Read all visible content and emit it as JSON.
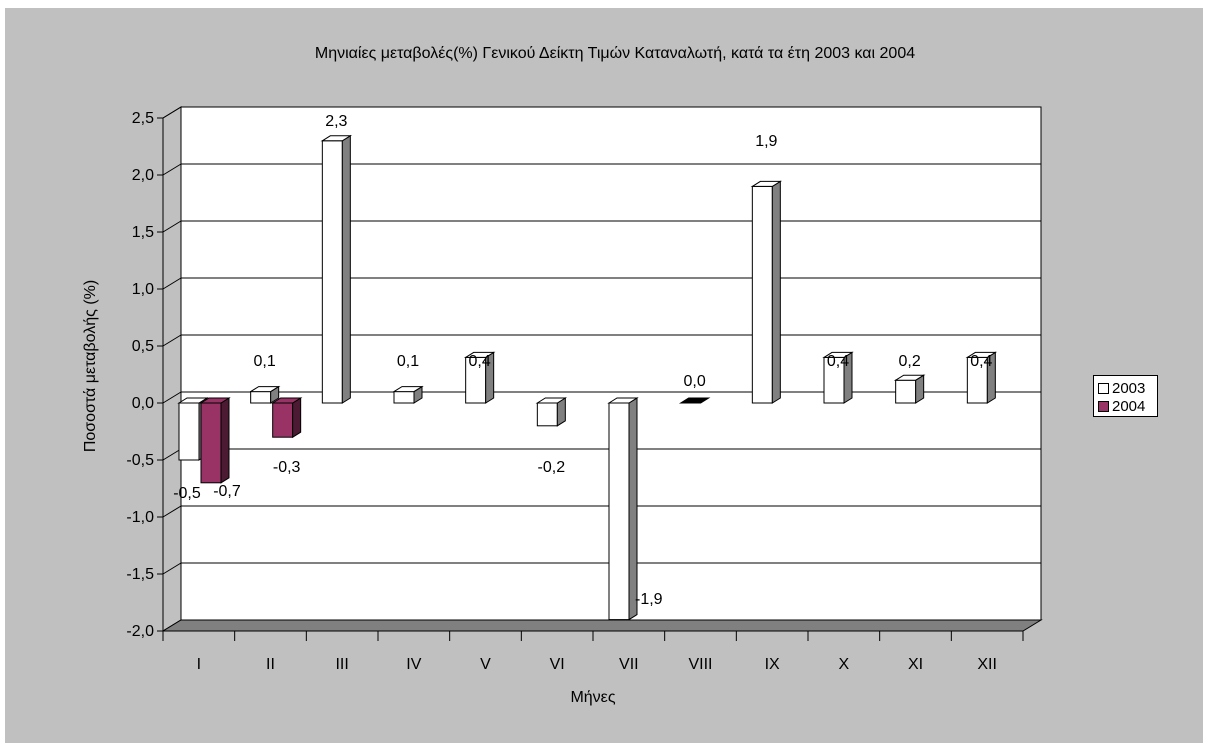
{
  "colors": {
    "background": "#c0c0c0",
    "plot_back": "#ffffff",
    "gridline": "#000000",
    "floor": "#808080",
    "series_2003_face": "#ffffff",
    "series_2003_side": "#808080",
    "series_2004_face": "#993366",
    "series_2004_side": "#4d1a33"
  },
  "chart_data": {
    "type": "bar",
    "title": "Μηνιαίες μεταβολές(%) Γενικού Δείκτη Τιμών Καταναλωτή, κατά τα έτη 2003 και 2004",
    "xlabel": "Μήνες",
    "ylabel": "Ποσοστά μεταβολής (%)",
    "ylim": [
      -2.0,
      2.5
    ],
    "yticks": [
      "2,5",
      "2,0",
      "1,5",
      "1,0",
      "0,5",
      "0,0",
      "-0,5",
      "-1,0",
      "-1,5",
      "-2,0"
    ],
    "ytick_values": [
      2.5,
      2.0,
      1.5,
      1.0,
      0.5,
      0.0,
      -0.5,
      -1.0,
      -1.5,
      -2.0
    ],
    "grid": true,
    "legend_position": "right",
    "categories": [
      "I",
      "II",
      "III",
      "IV",
      "V",
      "VI",
      "VII",
      "VIII",
      "IX",
      "X",
      "XI",
      "XII"
    ],
    "series": [
      {
        "name": "2003",
        "values": [
          -0.5,
          0.1,
          2.3,
          0.1,
          0.4,
          -0.2,
          -1.9,
          0.0,
          1.9,
          0.4,
          0.2,
          0.4
        ],
        "labels": [
          "-0,5",
          "0,1",
          "2,3",
          "0,1",
          "0,4",
          "-0,2",
          "-1,9",
          "0,0",
          "1,9",
          "0,4",
          "0,2",
          "0,4"
        ]
      },
      {
        "name": "2004",
        "values": [
          -0.7,
          -0.3,
          null,
          null,
          null,
          null,
          null,
          null,
          null,
          null,
          null,
          null
        ],
        "labels": [
          "-0,7",
          "-0,3",
          null,
          null,
          null,
          null,
          null,
          null,
          null,
          null,
          null,
          null
        ]
      }
    ]
  }
}
